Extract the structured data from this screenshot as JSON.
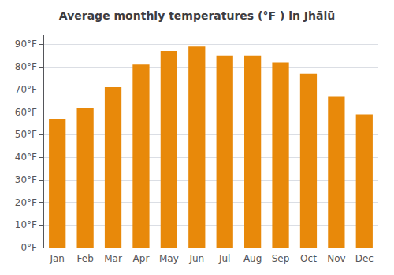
{
  "chart_data": {
    "type": "bar",
    "title": "Average monthly temperatures (°F ) in Jhālū",
    "categories": [
      "Jan",
      "Feb",
      "Mar",
      "Apr",
      "May",
      "Jun",
      "Jul",
      "Aug",
      "Sep",
      "Oct",
      "Nov",
      "Dec"
    ],
    "values": [
      57,
      62,
      71,
      81,
      87,
      89,
      85,
      85,
      82,
      77,
      67,
      59
    ],
    "color": "#E8890A",
    "ylim": [
      0,
      94
    ],
    "yticks": [
      {
        "value": 0,
        "label": "0°F"
      },
      {
        "value": 10,
        "label": "10°F"
      },
      {
        "value": 20,
        "label": "20°F"
      },
      {
        "value": 30,
        "label": "30°F"
      },
      {
        "value": 40,
        "label": "40°F"
      },
      {
        "value": 50,
        "label": "50°F"
      },
      {
        "value": 60,
        "label": "60°F"
      },
      {
        "value": 70,
        "label": "70°F"
      },
      {
        "value": 80,
        "label": "80°F"
      },
      {
        "value": 90,
        "label": "90°F"
      }
    ],
    "grid": true
  }
}
